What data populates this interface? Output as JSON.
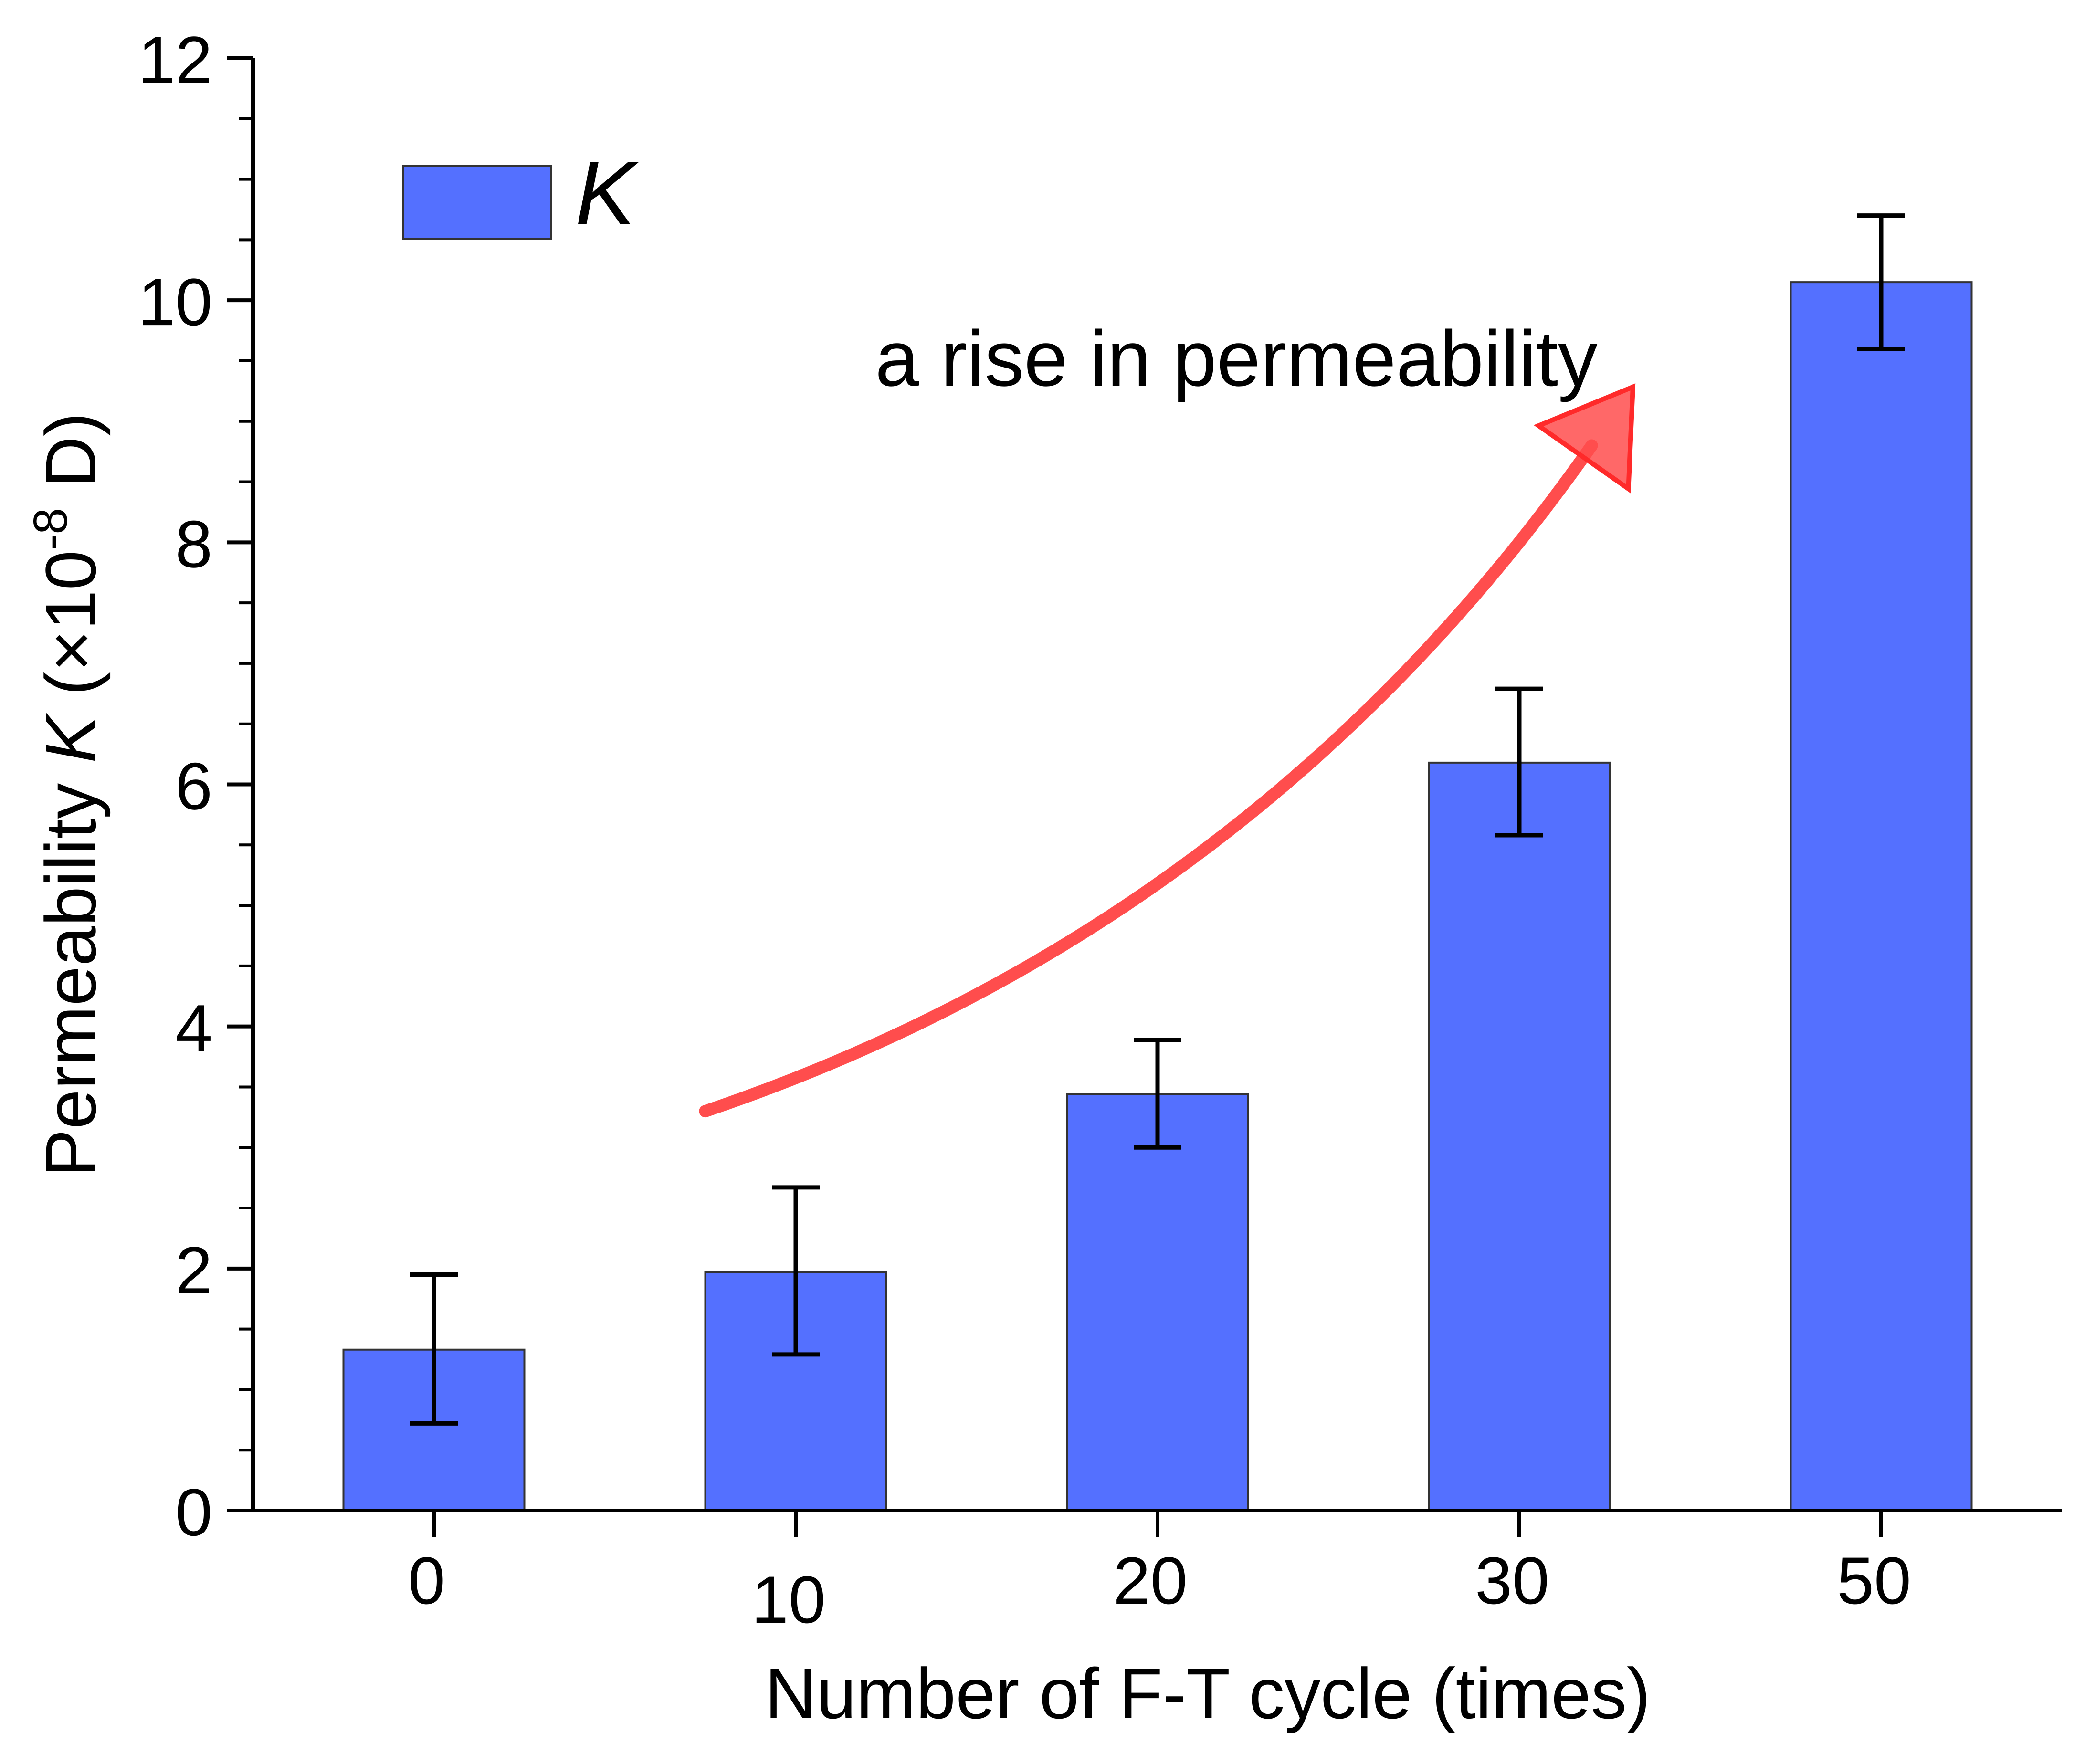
{
  "chart_data": {
    "type": "bar",
    "title": "",
    "xlabel": "Number of F-T cycle (times)",
    "ylabel": {
      "prefix": "Permeability ",
      "symbol": "K",
      "open": " (×10",
      "exponent": "-8",
      "close": " D)"
    },
    "categories": [
      "0",
      "10",
      "20",
      "30",
      "50"
    ],
    "series": [
      {
        "name": "K",
        "values": [
          1.33,
          1.97,
          3.44,
          6.18,
          10.15
        ],
        "error_low": [
          0.72,
          1.29,
          3.0,
          5.58,
          9.6
        ],
        "error_high": [
          1.95,
          2.67,
          3.89,
          6.79,
          10.7
        ],
        "color": "#5470ff"
      }
    ],
    "ylim": [
      0,
      12
    ],
    "yticks": [
      "0",
      "2",
      "4",
      "6",
      "8",
      "10",
      "12"
    ],
    "grid": false,
    "legend": {
      "position": "top-left",
      "label": "K"
    },
    "annotation": {
      "text": "a rise in permeability",
      "arrow_color": "#ff4d4d",
      "arrow_from": {
        "category_index": 0.75,
        "value": 3.3
      },
      "arrow_to": {
        "category_index": 3.2,
        "value": 8.8
      }
    }
  }
}
